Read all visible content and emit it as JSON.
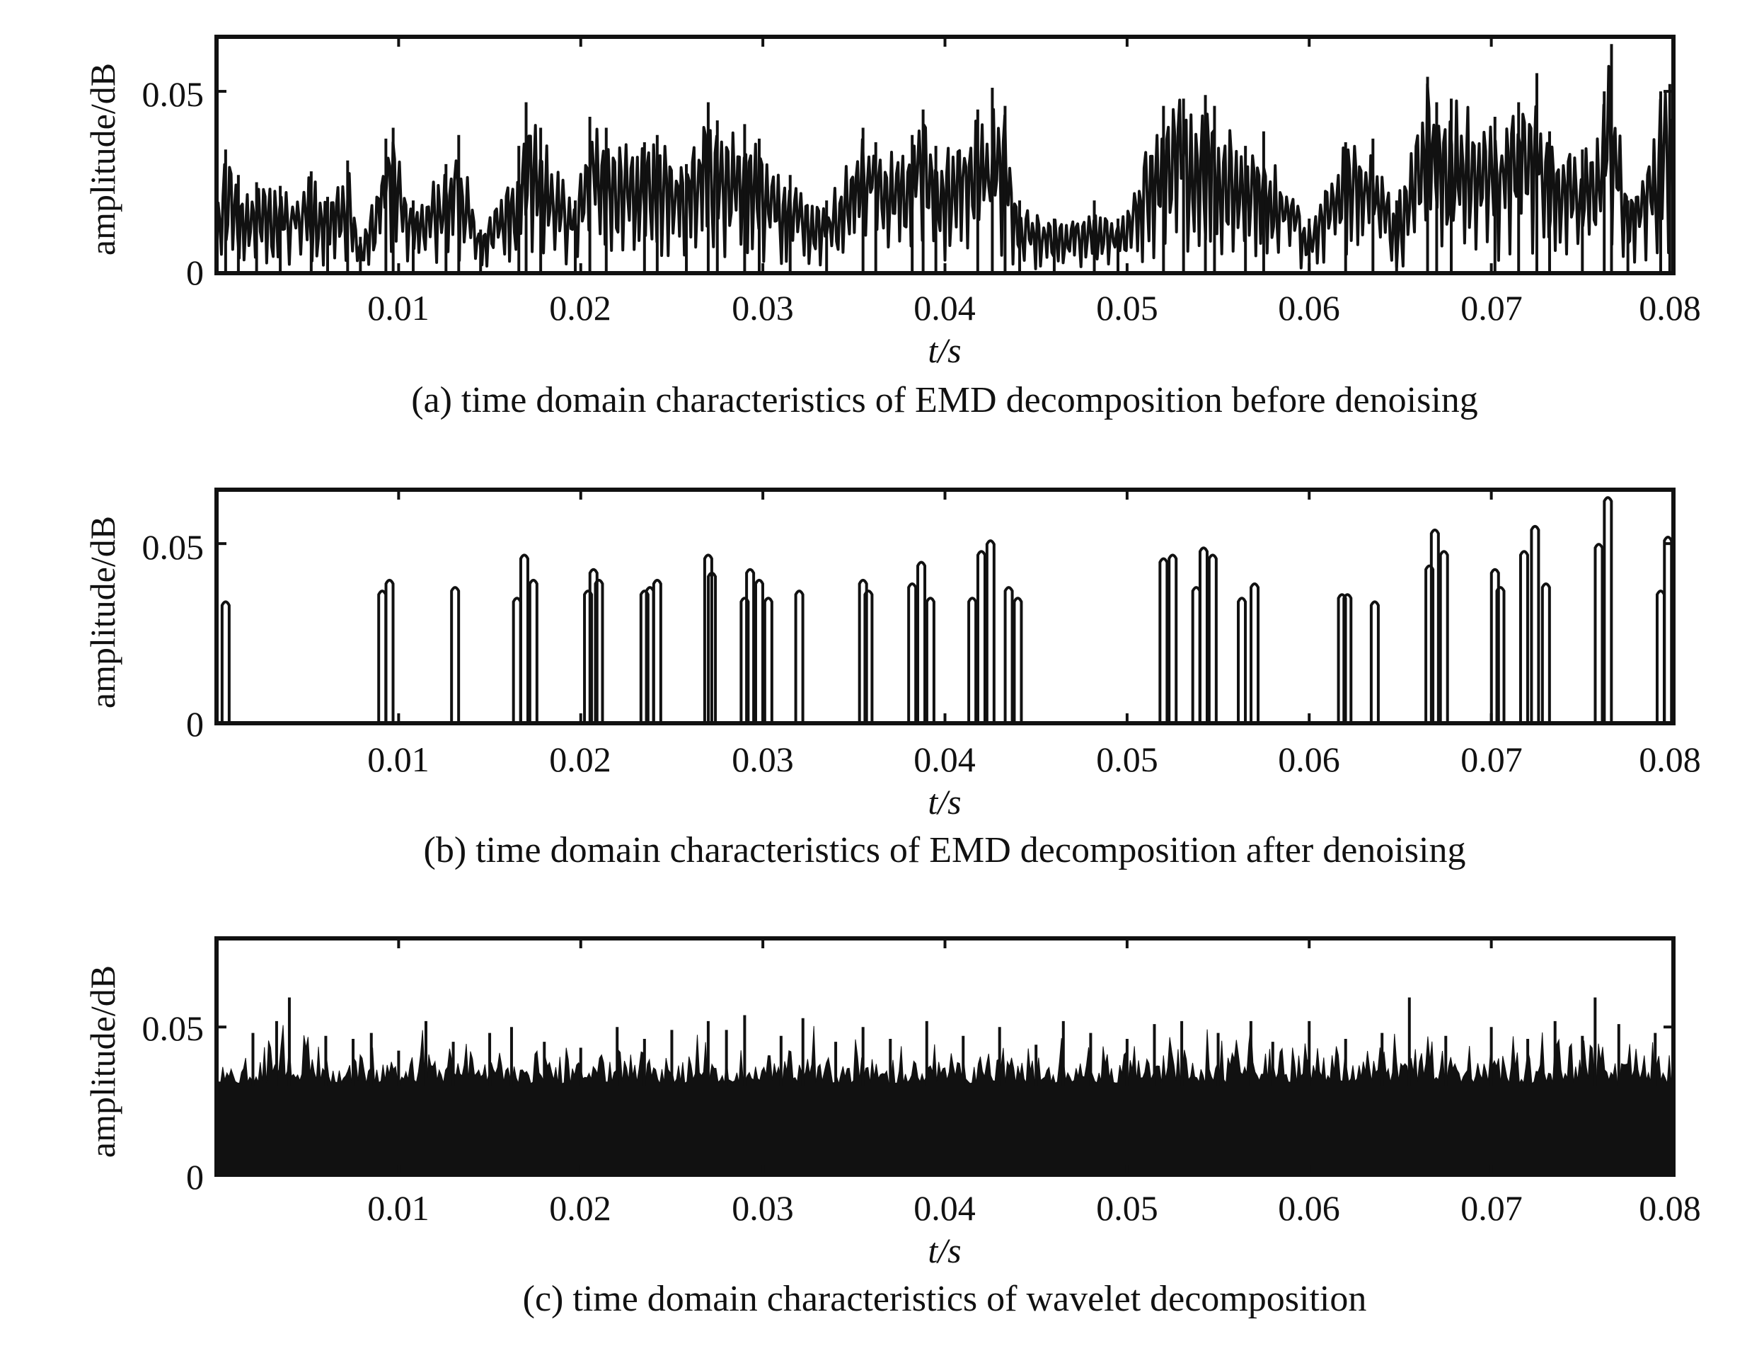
{
  "chart_data": [
    {
      "type": "line",
      "panel": "a",
      "caption": "(a) time domain characteristics of EMD decomposition before denoising",
      "xlabel": "t/s",
      "ylabel": "amplitude/dB",
      "xlim": [
        0,
        0.08
      ],
      "ylim": [
        0,
        0.065
      ],
      "x_ticks": [
        "0.01",
        "0.02",
        "0.03",
        "0.04",
        "0.05",
        "0.06",
        "0.07",
        "0.08"
      ],
      "y_ticks": [
        "0",
        "0.05"
      ],
      "grid": false,
      "series": [
        {
          "style": "dense oscillating envelope",
          "x": [
            0,
            0.0005,
            0.0012,
            0.0022,
            0.0035,
            0.0052,
            0.0061,
            0.0072,
            0.0079,
            0.0093,
            0.0097,
            0.0108,
            0.0126,
            0.0133,
            0.0145,
            0.0166,
            0.017,
            0.0178,
            0.0197,
            0.0205,
            0.0214,
            0.0235,
            0.0242,
            0.0258,
            0.027,
            0.0275,
            0.029,
            0.0298,
            0.0315,
            0.0335,
            0.0355,
            0.0362,
            0.0382,
            0.0388,
            0.0395,
            0.0418,
            0.0426,
            0.0433,
            0.0441,
            0.046,
            0.0482,
            0.0495,
            0.052,
            0.0531,
            0.0543,
            0.0548,
            0.0565,
            0.0575,
            0.06,
            0.062,
            0.0635,
            0.0648,
            0.0665,
            0.067,
            0.0678,
            0.0702,
            0.0715,
            0.0725,
            0.0732,
            0.075,
            0.0762,
            0.0766,
            0.0775,
            0.0793,
            0.0798
          ],
          "y": [
            0.02,
            0.034,
            0.027,
            0.025,
            0.024,
            0.028,
            0.021,
            0.031,
            0.01,
            0.037,
            0.04,
            0.02,
            0.03,
            0.038,
            0.012,
            0.035,
            0.047,
            0.04,
            0.02,
            0.043,
            0.04,
            0.036,
            0.038,
            0.03,
            0.047,
            0.042,
            0.041,
            0.037,
            0.027,
            0.02,
            0.04,
            0.036,
            0.038,
            0.045,
            0.035,
            0.045,
            0.051,
            0.046,
            0.02,
            0.015,
            0.02,
            0.015,
            0.046,
            0.048,
            0.049,
            0.046,
            0.035,
            0.039,
            0.015,
            0.036,
            0.037,
            0.02,
            0.054,
            0.047,
            0.048,
            0.043,
            0.047,
            0.055,
            0.039,
            0.034,
            0.05,
            0.063,
            0.02,
            0.05,
            0.052
          ]
        }
      ]
    },
    {
      "type": "line",
      "panel": "b",
      "caption": "(b) time domain characteristics of EMD decomposition after denoising",
      "xlabel": "t/s",
      "ylabel": "amplitude/dB",
      "xlim": [
        0,
        0.08
      ],
      "ylim": [
        0,
        0.065
      ],
      "x_ticks": [
        "0.01",
        "0.02",
        "0.03",
        "0.04",
        "0.05",
        "0.06",
        "0.07",
        "0.08"
      ],
      "y_ticks": [
        "0",
        "0.05"
      ],
      "grid": false,
      "series": [
        {
          "style": "isolated spikes",
          "x": [
            0.0005,
            0.0091,
            0.0095,
            0.0131,
            0.0165,
            0.0169,
            0.0174,
            0.0204,
            0.0207,
            0.021,
            0.0235,
            0.0238,
            0.0242,
            0.027,
            0.0272,
            0.029,
            0.0293,
            0.0298,
            0.0303,
            0.032,
            0.0355,
            0.0358,
            0.0382,
            0.0387,
            0.0392,
            0.0415,
            0.042,
            0.0425,
            0.0435,
            0.044,
            0.052,
            0.0525,
            0.0538,
            0.0542,
            0.0547,
            0.0563,
            0.057,
            0.0618,
            0.0621,
            0.0636,
            0.0666,
            0.0669,
            0.0674,
            0.0702,
            0.0705,
            0.0718,
            0.0724,
            0.073,
            0.0759,
            0.0764,
            0.0793,
            0.0797
          ],
          "y": [
            0.034,
            0.037,
            0.04,
            0.038,
            0.035,
            0.047,
            0.04,
            0.037,
            0.043,
            0.04,
            0.037,
            0.038,
            0.04,
            0.047,
            0.042,
            0.035,
            0.043,
            0.04,
            0.035,
            0.037,
            0.04,
            0.037,
            0.039,
            0.045,
            0.035,
            0.035,
            0.048,
            0.051,
            0.038,
            0.035,
            0.046,
            0.047,
            0.038,
            0.049,
            0.047,
            0.035,
            0.039,
            0.036,
            0.036,
            0.034,
            0.044,
            0.054,
            0.048,
            0.043,
            0.038,
            0.048,
            0.055,
            0.039,
            0.05,
            0.063,
            0.037,
            0.052
          ]
        }
      ]
    },
    {
      "type": "area",
      "panel": "c",
      "caption": "(c) time domain characteristics of wavelet decomposition",
      "xlabel": "t/s",
      "ylabel": "amplitude/dB",
      "xlim": [
        0,
        0.08
      ],
      "ylim": [
        0,
        0.08
      ],
      "x_ticks": [
        "0.01",
        "0.02",
        "0.03",
        "0.04",
        "0.05",
        "0.06",
        "0.07",
        "0.08"
      ],
      "y_ticks": [
        "0",
        "0.05"
      ],
      "grid": false,
      "series": [
        {
          "style": "dense filled noise envelope",
          "x": [
            0,
            0.002,
            0.0033,
            0.004,
            0.006,
            0.0075,
            0.0085,
            0.01,
            0.0115,
            0.013,
            0.015,
            0.0162,
            0.018,
            0.02,
            0.022,
            0.0235,
            0.025,
            0.027,
            0.028,
            0.029,
            0.031,
            0.0322,
            0.034,
            0.0355,
            0.037,
            0.039,
            0.041,
            0.043,
            0.045,
            0.0465,
            0.048,
            0.05,
            0.0515,
            0.053,
            0.055,
            0.0568,
            0.058,
            0.06,
            0.062,
            0.064,
            0.0655,
            0.0675,
            0.07,
            0.072,
            0.0735,
            0.075,
            0.0757,
            0.077,
            0.079,
            0.08
          ],
          "y": [
            0.038,
            0.048,
            0.052,
            0.06,
            0.047,
            0.046,
            0.048,
            0.042,
            0.052,
            0.045,
            0.048,
            0.05,
            0.045,
            0.043,
            0.05,
            0.046,
            0.049,
            0.052,
            0.049,
            0.054,
            0.047,
            0.053,
            0.045,
            0.05,
            0.046,
            0.052,
            0.047,
            0.05,
            0.044,
            0.052,
            0.048,
            0.046,
            0.051,
            0.052,
            0.048,
            0.052,
            0.045,
            0.052,
            0.046,
            0.048,
            0.06,
            0.047,
            0.05,
            0.046,
            0.052,
            0.047,
            0.06,
            0.051,
            0.048,
            0.04
          ],
          "base": 0.03
        }
      ]
    }
  ]
}
